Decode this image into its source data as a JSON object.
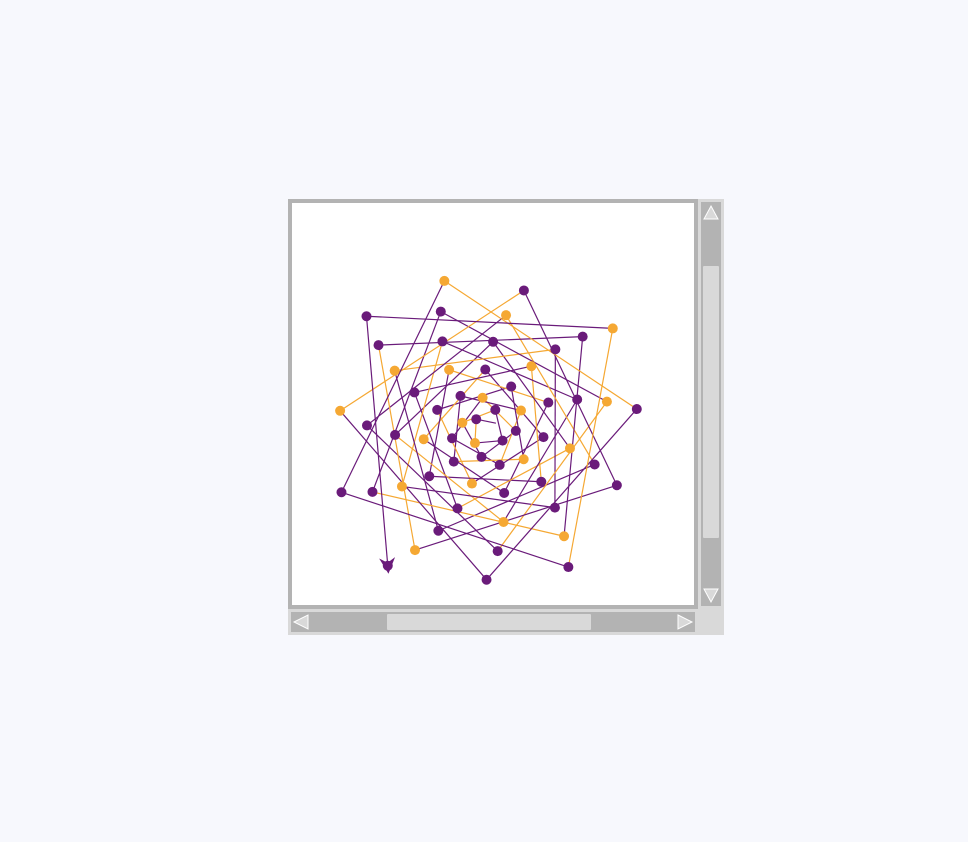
{
  "colors": {
    "background": "#f7f8fd",
    "frame": "#b3b3b3",
    "scrollbar_bg": "#d9d9d9",
    "canvas": "#ffffff",
    "purple_pen": "#6a1b7a",
    "orange_pen": "#f5a833"
  },
  "icons": {
    "scroll_up": "triangle-up-icon",
    "scroll_down": "triangle-down-icon",
    "scroll_left": "triangle-left-icon",
    "scroll_right": "triangle-right-icon",
    "turtle_cursor": "turtle-arrow-icon"
  },
  "scroll": {
    "vertical_thumb_start": 0.16,
    "vertical_thumb_fraction": 0.67,
    "horizontal_thumb_start": 0.24,
    "horizontal_thumb_fraction": 0.5
  },
  "drawing": {
    "description_type": "turtle spiral",
    "pens": [
      "purple",
      "orange"
    ]
  }
}
